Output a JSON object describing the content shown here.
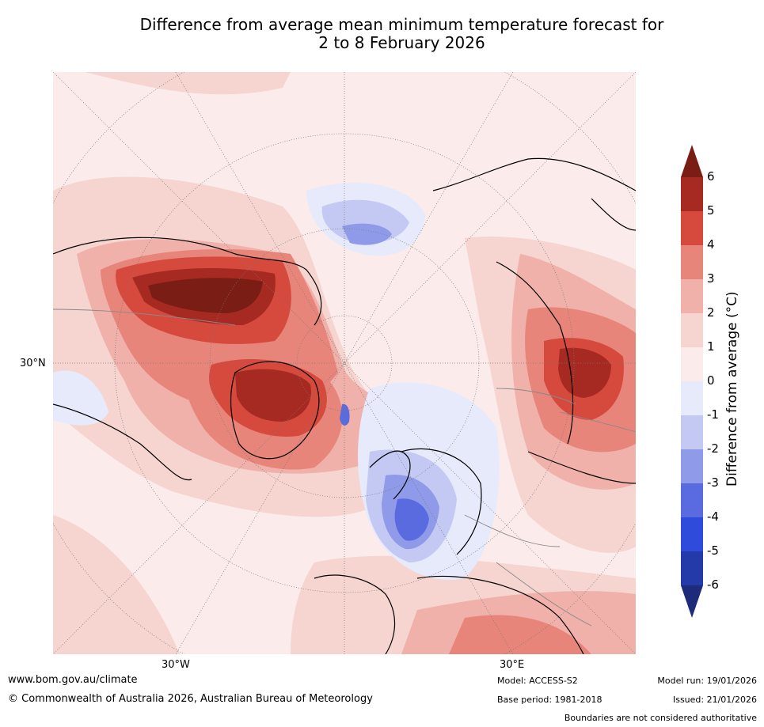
{
  "title": {
    "line1": "Difference from average mean minimum temperature forecast for",
    "line2": "2 to 8 February 2026"
  },
  "map": {
    "lat_label": "30°N",
    "lon_labels": [
      "30°W",
      "30°E"
    ]
  },
  "colorbar": {
    "label": "Difference from average (°C)",
    "ticks": [
      "6",
      "5",
      "4",
      "3",
      "2",
      "1",
      "0",
      "-1",
      "-2",
      "-3",
      "-4",
      "-5",
      "-6"
    ],
    "colors": [
      "#7a1d15",
      "#a72a22",
      "#d64a3e",
      "#e8857a",
      "#f0b1aa",
      "#f6d5d0",
      "#fbeceb",
      "#e6eafb",
      "#c3c9f2",
      "#8f9ae8",
      "#5a6bdf",
      "#2f4bdc",
      "#243aa8",
      "#1e2a7a"
    ]
  },
  "footer": {
    "website": "www.bom.gov.au/climate",
    "copyright": "© Commonwealth of Australia 2026, Australian Bureau of Meteorology",
    "model": "Model: ACCESS-S2",
    "base_period": "Base period: 1981-2018",
    "model_run": "Model run: 19/01/2026",
    "issued": "Issued: 21/01/2026",
    "disclaimer": "Boundaries are not considered authoritative"
  }
}
